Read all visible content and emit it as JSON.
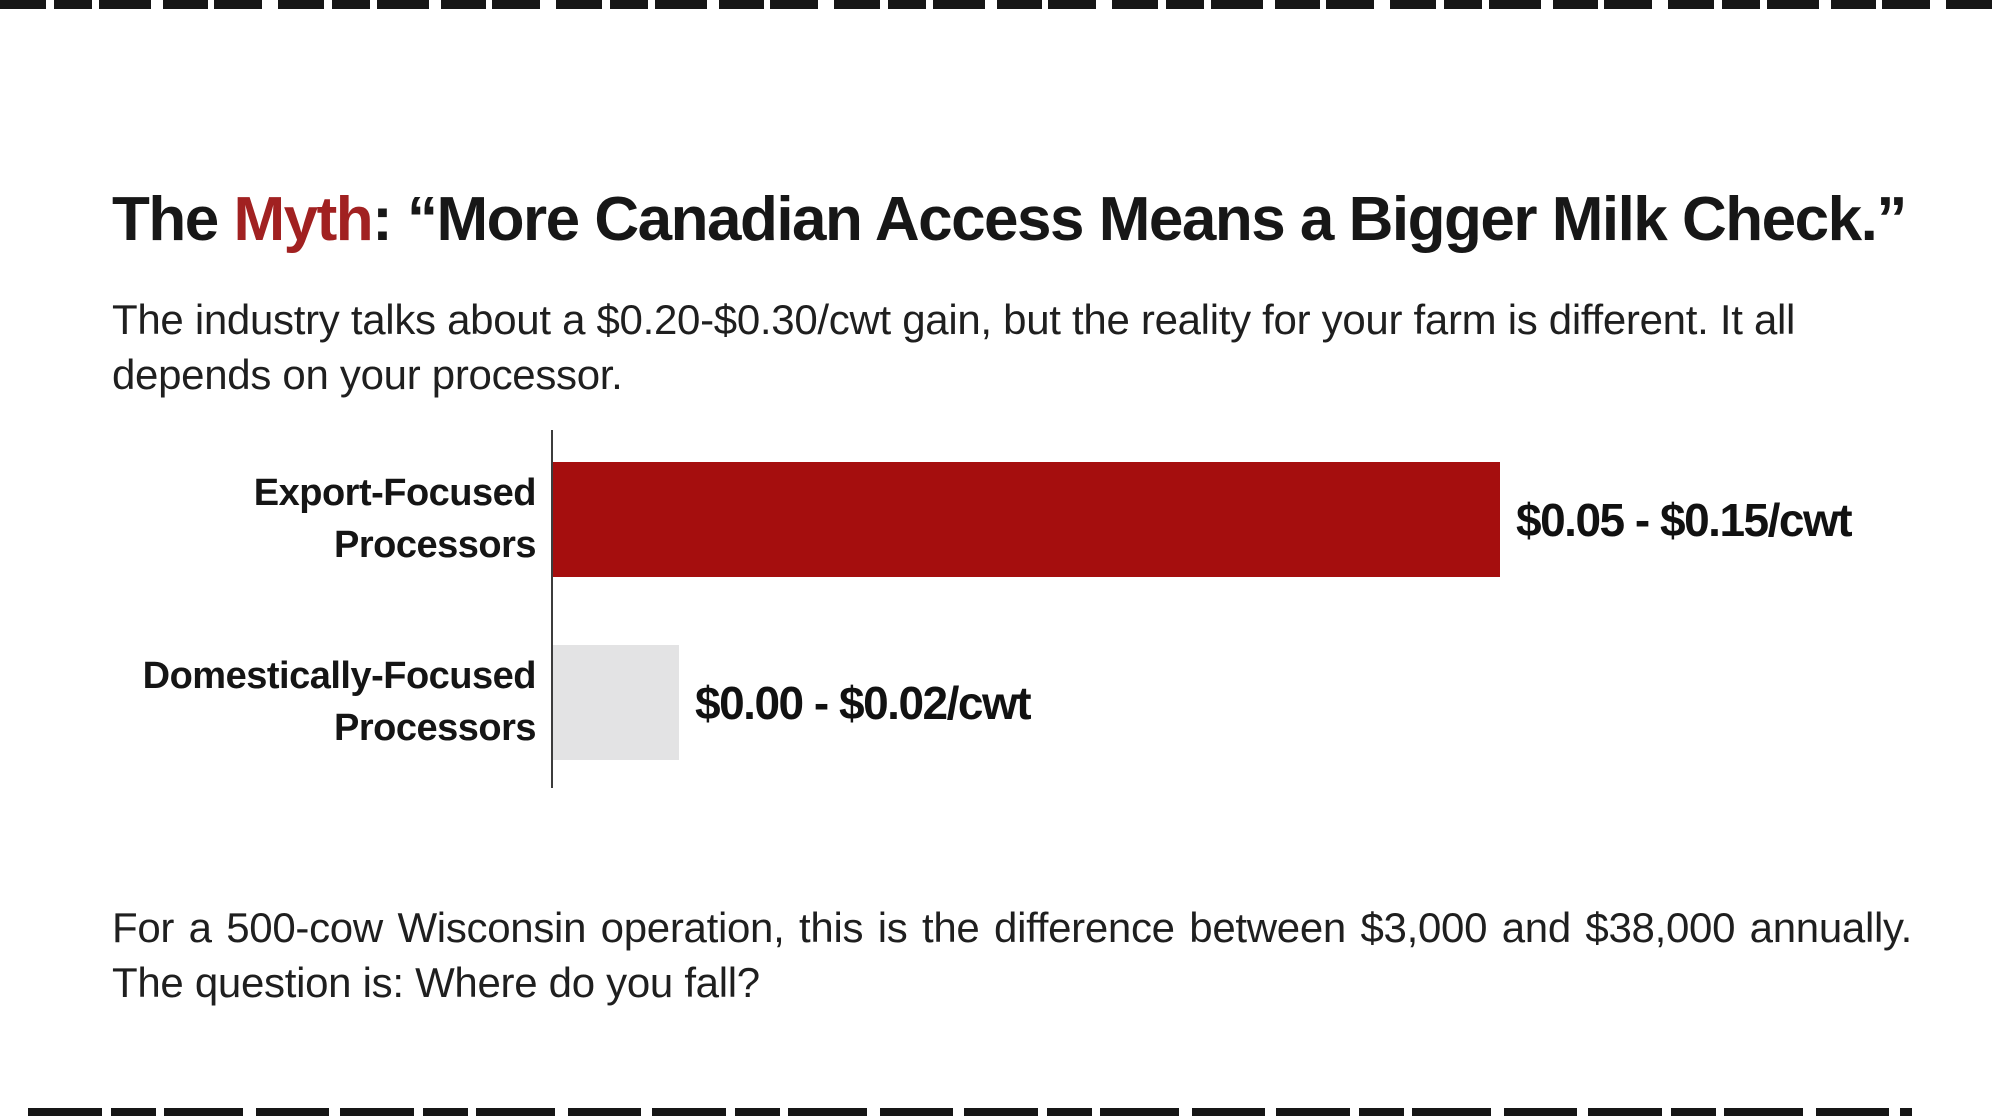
{
  "colors": {
    "accent_red": "#a50e0e",
    "myth_red": "#a12121",
    "bar_gray": "#e3e3e4",
    "axis": "#3c3c3c",
    "text_dark": "#1c1c1c"
  },
  "title": {
    "prefix": "The ",
    "highlight": "Myth",
    "rest": ": “More Canadian Access Means a Bigger Milk Check.”"
  },
  "subtitle": "The industry talks about a $0.20-$0.30/cwt gain, but the reality for your farm is different. It all depends on your processor.",
  "chart_data": {
    "type": "bar",
    "orientation": "horizontal",
    "categories": [
      "Export-Focused Processors",
      "Domestically-Focused Processors"
    ],
    "values": [
      0.15,
      0.02
    ],
    "value_ranges": [
      [
        0.05,
        0.15
      ],
      [
        0.0,
        0.02
      ]
    ],
    "value_labels": [
      "$0.05 - $0.15/cwt",
      "$0.00 - $0.02/cwt"
    ],
    "unit": "$/cwt",
    "bar_colors": [
      "#a50e0e",
      "#e3e3e4"
    ],
    "xlim": [
      0,
      0.15
    ],
    "grid": false,
    "legend": false,
    "title": "",
    "xlabel": "",
    "ylabel": ""
  },
  "footer": "For a 500-cow Wisconsin operation, this is the difference between $3,000 and $38,000 annually. The question is: Where do you fall?"
}
